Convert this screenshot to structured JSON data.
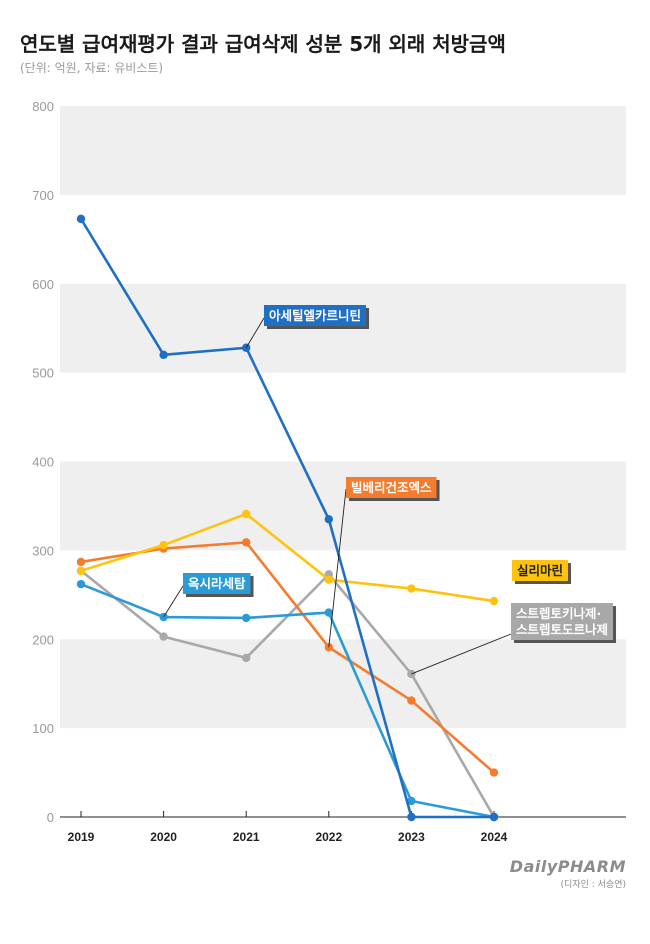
{
  "header": {
    "title": "연도별 급여재평가 결과 급여삭제 성분 5개 외래 처방금액",
    "subtitle": "(단위: 억원, 자료: 유비스트)"
  },
  "footer": {
    "brand": "DailyPHARM",
    "credit": "(디자인 : 서승연)"
  },
  "chart_data": {
    "type": "line",
    "title": "연도별 급여재평가 결과 급여삭제 성분 5개 외래 처방금액",
    "subtitle": "(단위: 억원, 자료: 유비스트)",
    "xlabel": "",
    "ylabel": "",
    "x": [
      "2019",
      "2020",
      "2021",
      "2022",
      "2023",
      "2024"
    ],
    "ylim": [
      0,
      800
    ],
    "yticks": [
      0,
      100,
      200,
      300,
      400,
      500,
      600,
      700,
      800
    ],
    "grid": "alternating horizontal bands",
    "series": [
      {
        "name": "아세틸엘카르니틴",
        "color": "#1f6fc5",
        "values": [
          673,
          520,
          528,
          335,
          0,
          0
        ]
      },
      {
        "name": "빌베리건조엑스",
        "color": "#f57c2e",
        "values": [
          287,
          302,
          309,
          191,
          131,
          50
        ]
      },
      {
        "name": "실리마린",
        "color": "#ffc20e",
        "values": [
          277,
          306,
          341,
          267,
          257,
          243
        ]
      },
      {
        "name": "옥시라세탐",
        "color": "#2b9bd8",
        "values": [
          262,
          225,
          224,
          230,
          18,
          0
        ]
      },
      {
        "name": "스트렙토키나제·스트렙토도르나제",
        "color": "#a8a8a8",
        "values": [
          277,
          203,
          179,
          273,
          161,
          0
        ]
      }
    ],
    "annotations": [
      {
        "series": 0,
        "lines": [
          "아세틸엘카르니틴"
        ],
        "anchor": "2021"
      },
      {
        "series": 1,
        "lines": [
          "빌베리건조엑스"
        ],
        "anchor": "2022"
      },
      {
        "series": 2,
        "lines": [
          "실리마린"
        ],
        "anchor": "2024"
      },
      {
        "series": 3,
        "lines": [
          "옥시라세탐"
        ],
        "anchor": "2020"
      },
      {
        "series": 4,
        "lines": [
          "스트렙토키나제·",
          "스트렙토도르나제"
        ],
        "anchor": "2023"
      }
    ]
  }
}
